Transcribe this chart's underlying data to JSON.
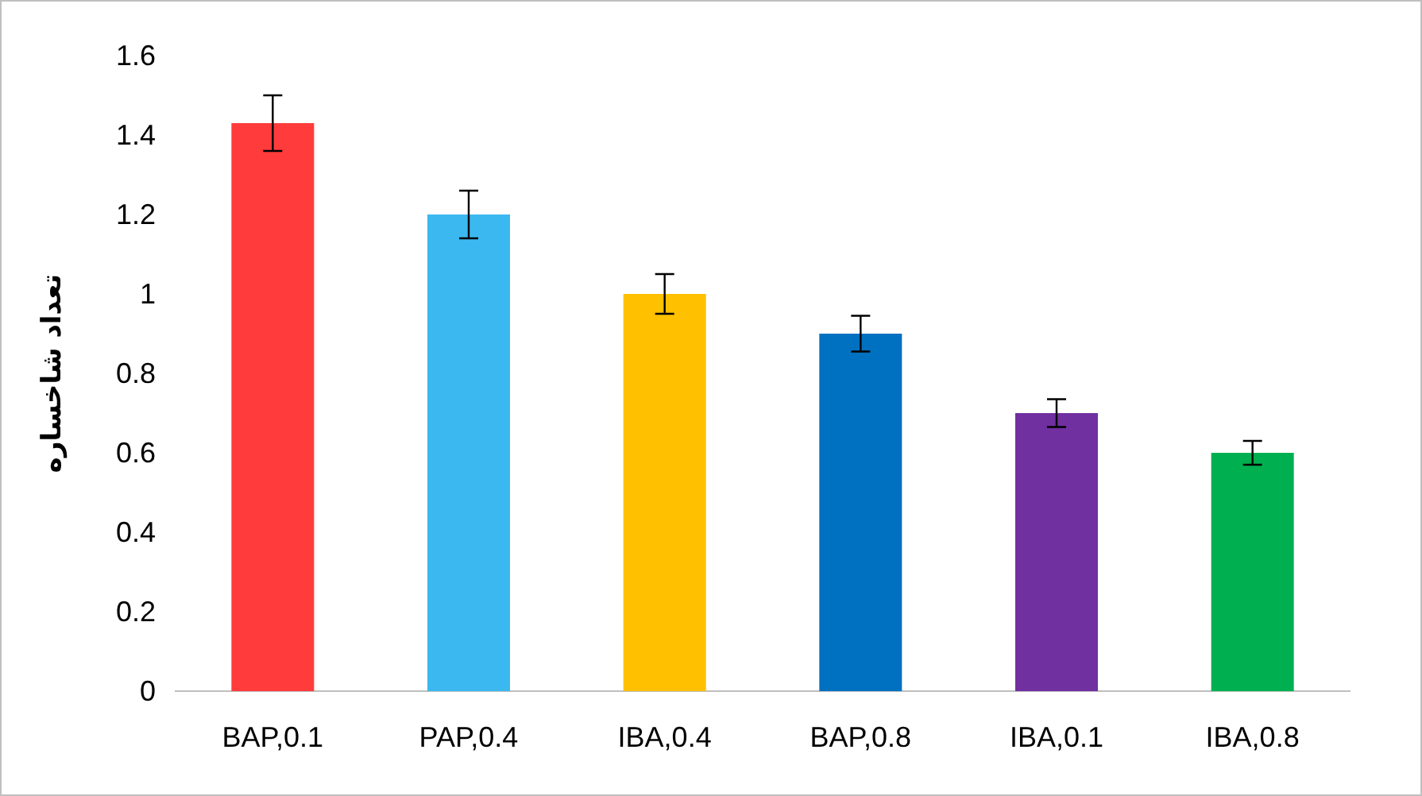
{
  "chart_data": {
    "type": "bar",
    "ylabel": "تعداد شاخساره",
    "categories": [
      "BAP,0.1",
      "PAP,0.4",
      "IBA,0.4",
      "BAP,0.8",
      "IBA,0.1",
      "IBA,0.8"
    ],
    "values": [
      1.43,
      1.2,
      1.0,
      0.9,
      0.7,
      0.6
    ],
    "errors": [
      0.07,
      0.06,
      0.05,
      0.045,
      0.035,
      0.03
    ],
    "colors": [
      "#ff3b3b",
      "#3cb8f0",
      "#ffc000",
      "#0070c0",
      "#7030a0",
      "#00b050"
    ],
    "ylim": [
      0,
      1.6
    ],
    "yticks": [
      0,
      0.2,
      0.4,
      0.6,
      0.8,
      1,
      1.2,
      1.4,
      1.6
    ]
  }
}
